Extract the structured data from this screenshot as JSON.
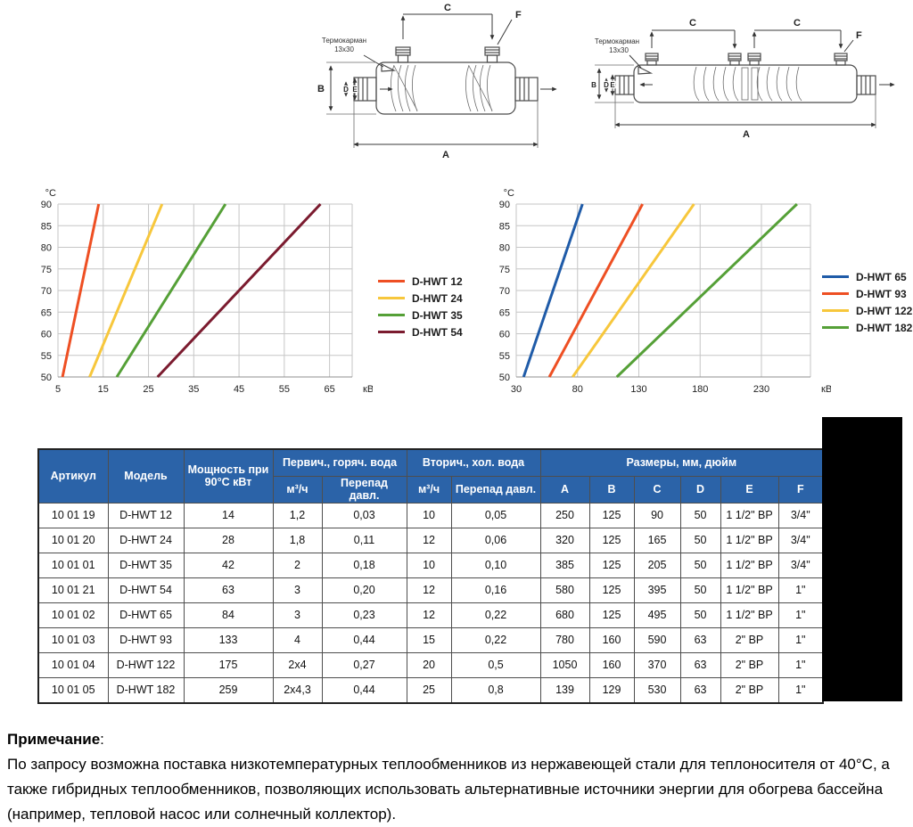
{
  "diagram_labels": {
    "thermowell_line1": "Термокарман",
    "thermowell_line2": "13x30",
    "dim_a": "A",
    "dim_b": "B",
    "dim_c": "C",
    "dim_d": "D",
    "dim_e": "E",
    "dim_f": "F"
  },
  "chart_data": [
    {
      "type": "line",
      "title": "",
      "ylabel": "°C",
      "xlabel": "кВт",
      "ylim": [
        50,
        90
      ],
      "xlim": [
        5,
        70
      ],
      "yticks": [
        50,
        55,
        60,
        65,
        70,
        75,
        80,
        85,
        90
      ],
      "xticks": [
        5,
        15,
        25,
        35,
        45,
        55,
        65
      ],
      "grid": true,
      "legend_position": "right",
      "series": [
        {
          "name": "D-HWT 12",
          "color": "#EE4F23",
          "points": [
            [
              6,
              50
            ],
            [
              14,
              90
            ]
          ]
        },
        {
          "name": "D-HWT 24",
          "color": "#F7C73C",
          "points": [
            [
              12,
              50
            ],
            [
              28,
              90
            ]
          ]
        },
        {
          "name": "D-HWT 35",
          "color": "#55A037",
          "points": [
            [
              18,
              50
            ],
            [
              42,
              90
            ]
          ]
        },
        {
          "name": "D-HWT 54",
          "color": "#7B1B2F",
          "points": [
            [
              27,
              50
            ],
            [
              63,
              90
            ]
          ]
        }
      ]
    },
    {
      "type": "line",
      "title": "",
      "ylabel": "°C",
      "xlabel": "кВт",
      "ylim": [
        50,
        90
      ],
      "xlim": [
        30,
        270
      ],
      "yticks": [
        50,
        55,
        60,
        65,
        70,
        75,
        80,
        85,
        90
      ],
      "xticks": [
        30,
        80,
        130,
        180,
        230
      ],
      "grid": true,
      "legend_position": "right",
      "series": [
        {
          "name": "D-HWT 65",
          "color": "#1F5BA8",
          "points": [
            [
              36,
              50
            ],
            [
              84,
              90
            ]
          ]
        },
        {
          "name": "D-HWT 93",
          "color": "#EE4F23",
          "points": [
            [
              57,
              50
            ],
            [
              133,
              90
            ]
          ]
        },
        {
          "name": "D-HWT 122",
          "color": "#F7C73C",
          "points": [
            [
              76,
              50
            ],
            [
              175,
              90
            ]
          ]
        },
        {
          "name": "D-HWT 182",
          "color": "#55A037",
          "points": [
            [
              112,
              50
            ],
            [
              259,
              90
            ]
          ]
        }
      ]
    }
  ],
  "table": {
    "header": {
      "article": "Артикул",
      "model": "Модель",
      "power": "Мощность при 90°С кВт",
      "primary_group": "Первич., горяч. вода",
      "secondary_group": "Вторич., хол. вода",
      "dimensions_group": "Размеры, мм, дюйм",
      "flow": "м³/ч",
      "pressure_drop": "Перепад давл.",
      "dims": [
        "A",
        "B",
        "C",
        "D",
        "E",
        "F"
      ]
    },
    "rows": [
      [
        "10 01 19",
        "D-HWT 12",
        "14",
        "1,2",
        "0,03",
        "10",
        "0,05",
        "250",
        "125",
        "90",
        "50",
        "1 1/2\" ВР",
        "3/4\""
      ],
      [
        "10 01 20",
        "D-HWT 24",
        "28",
        "1,8",
        "0,11",
        "12",
        "0,06",
        "320",
        "125",
        "165",
        "50",
        "1 1/2\" ВР",
        "3/4\""
      ],
      [
        "10 01 01",
        "D-HWT 35",
        "42",
        "2",
        "0,18",
        "10",
        "0,10",
        "385",
        "125",
        "205",
        "50",
        "1 1/2\" ВР",
        "3/4\""
      ],
      [
        "10 01 21",
        "D-HWT 54",
        "63",
        "3",
        "0,20",
        "12",
        "0,16",
        "580",
        "125",
        "395",
        "50",
        "1 1/2\" ВР",
        "1\""
      ],
      [
        "10 01 02",
        "D-HWT 65",
        "84",
        "3",
        "0,23",
        "12",
        "0,22",
        "680",
        "125",
        "495",
        "50",
        "1 1/2\" ВР",
        "1\""
      ],
      [
        "10 01 03",
        "D-HWT 93",
        "133",
        "4",
        "0,44",
        "15",
        "0,22",
        "780",
        "160",
        "590",
        "63",
        "2\" ВР",
        "1\""
      ],
      [
        "10 01 04",
        "D-HWT 122",
        "175",
        "2x4",
        "0,27",
        "20",
        "0,5",
        "1050",
        "160",
        "370",
        "63",
        "2\" ВР",
        "1\""
      ],
      [
        "10 01 05",
        "D-HWT 182",
        "259",
        "2x4,3",
        "0,44",
        "25",
        "0,8",
        "139",
        "129",
        "530",
        "63",
        "2\" ВР",
        "1\""
      ]
    ]
  },
  "note": {
    "title": "Примечание",
    "colon": ":",
    "text": "По запросу возможна поставка низкотемпературных теплообменников из нержавеющей стали для теплоносителя от 40°С, а также гибридных теплообменников, позволяющих использовать альтернативные источники энергии для обогрева бассейна (например, тепловой насос или солнечный коллектор)."
  },
  "colors": {
    "table_header_bg": "#2B63A8",
    "redaction": "#000000"
  }
}
